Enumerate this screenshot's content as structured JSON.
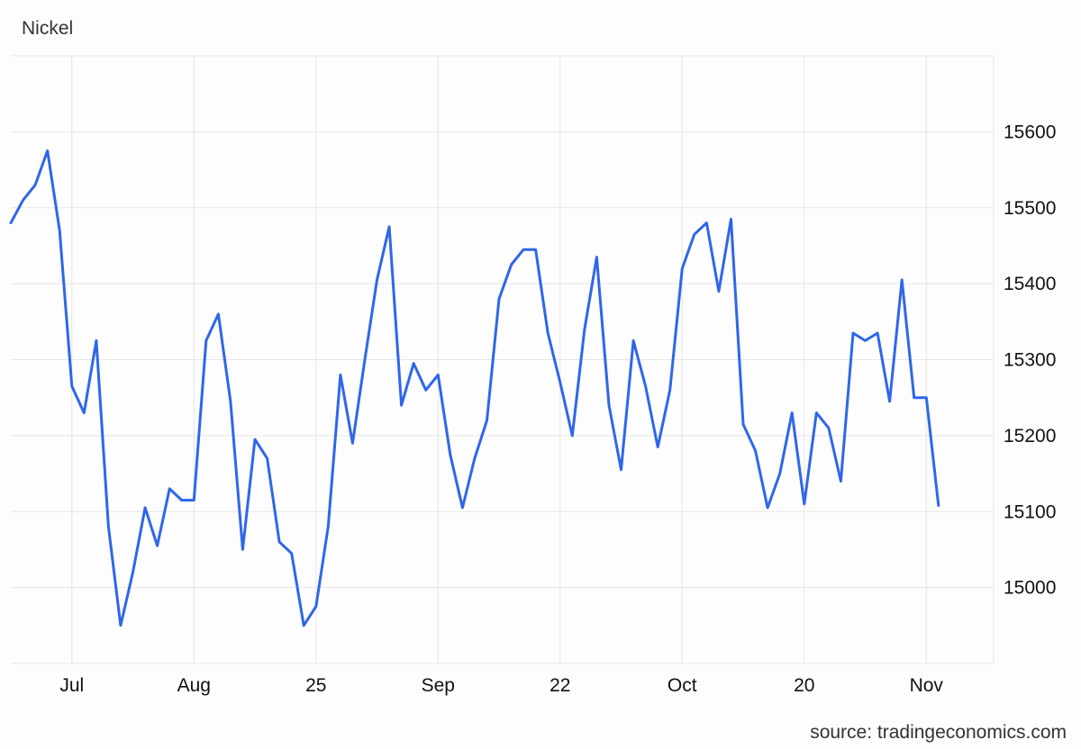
{
  "chart_title": "Nickel",
  "source": "source: tradingeconomics.com",
  "line_color": "#2f66ea",
  "grid_color": "#e6e6e6",
  "chart_data": {
    "type": "line",
    "title": "Nickel",
    "xlabel": "",
    "ylabel": "",
    "ylim": [
      14900,
      15700
    ],
    "yticks": [
      15000,
      15100,
      15200,
      15300,
      15400,
      15500,
      15600
    ],
    "xticks": [
      {
        "label": "Jul",
        "index": 5
      },
      {
        "label": "Aug",
        "index": 15
      },
      {
        "label": "25",
        "index": 25
      },
      {
        "label": "Sep",
        "index": 35
      },
      {
        "label": "22",
        "index": 45
      },
      {
        "label": "Oct",
        "index": 55
      },
      {
        "label": "20",
        "index": 65
      },
      {
        "label": "Nov",
        "index": 75
      }
    ],
    "grid": true,
    "legend": "none",
    "series": [
      {
        "values": [
          15480,
          15510,
          15530,
          15575,
          15470,
          15265,
          15230,
          15325,
          15080,
          14950,
          15020,
          15105,
          15055,
          15130,
          15115,
          15115,
          15325,
          15360,
          15245,
          15050,
          15195,
          15170,
          15060,
          15045,
          14950,
          14975,
          15080,
          15280,
          15190,
          15300,
          15405,
          15475,
          15240,
          15295,
          15260,
          15280,
          15175,
          15105,
          15170,
          15220,
          15380,
          15425,
          15445,
          15445,
          15335,
          15270,
          15200,
          15340,
          15435,
          15240,
          15155,
          15325,
          15265,
          15185,
          15260,
          15420,
          15465,
          15480,
          15390,
          15485,
          15215,
          15180,
          15105,
          15150,
          15230,
          15110,
          15230,
          15210,
          15140,
          15335,
          15325,
          15335,
          15245,
          15405,
          15250,
          15250,
          15108
        ]
      }
    ]
  }
}
